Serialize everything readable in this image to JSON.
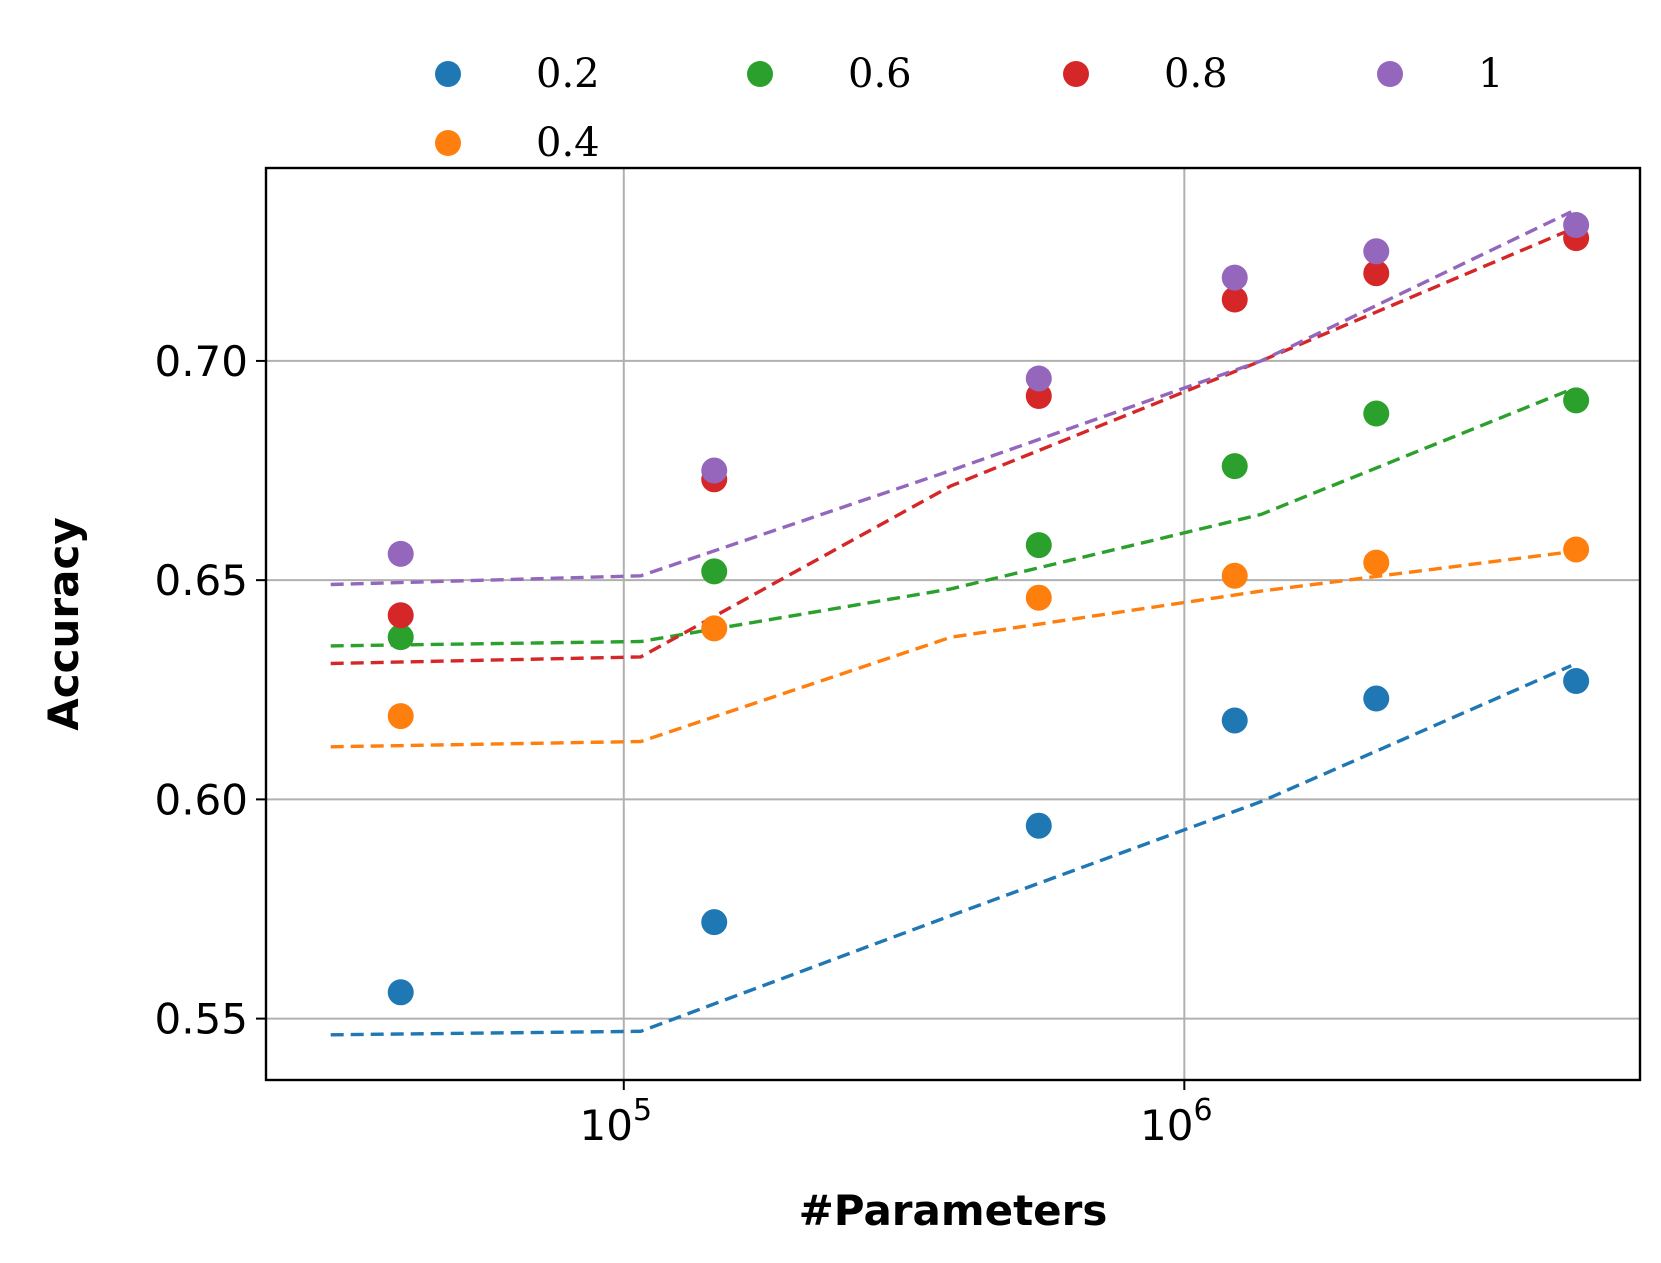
{
  "chart_data": {
    "type": "scatter",
    "title": "",
    "xlabel": "#Parameters",
    "ylabel": "Accuracy",
    "xscale": "log",
    "xlim": [
      23000,
      6500000
    ],
    "ylim": [
      0.536,
      0.744
    ],
    "grid": true,
    "legend_placement": "top, above plot",
    "x_ticks": [
      {
        "value": 100000,
        "base": "10",
        "exp": "5"
      },
      {
        "value": 1000000,
        "base": "10",
        "exp": "6"
      }
    ],
    "y_ticks": [
      {
        "value": 0.55,
        "label": "0.55"
      },
      {
        "value": 0.6,
        "label": "0.60"
      },
      {
        "value": 0.65,
        "label": "0.65"
      },
      {
        "value": 0.7,
        "label": "0.70"
      }
    ],
    "x": [
      40000,
      145000,
      550000,
      1230000,
      2200000,
      5000000
    ],
    "fit_x": [
      30000,
      4900000
    ],
    "series": [
      {
        "name": "0.2",
        "color": "#1f77b4",
        "values": [
          0.556,
          0.572,
          0.594,
          0.618,
          0.623,
          0.627
        ],
        "fit": [
          0.5463,
          0.5471,
          0.5735,
          0.5995,
          0.6305
        ]
      },
      {
        "name": "0.4",
        "color": "#ff7f0e",
        "values": [
          0.619,
          0.639,
          0.646,
          0.651,
          0.654,
          0.657
        ],
        "fit": [
          0.612,
          0.6132,
          0.637,
          0.6475,
          0.6565
        ]
      },
      {
        "name": "0.6",
        "color": "#2ca02c",
        "values": [
          0.637,
          0.652,
          0.658,
          0.676,
          0.688,
          0.691
        ],
        "fit": [
          0.635,
          0.636,
          0.648,
          0.665,
          0.6935
        ]
      },
      {
        "name": "0.8",
        "color": "#d62728",
        "values": [
          0.642,
          0.673,
          0.692,
          0.714,
          0.72,
          0.728
        ],
        "fit": [
          0.631,
          0.6325,
          0.6715,
          0.7,
          0.73
        ]
      },
      {
        "name": "1",
        "color": "#9467bd",
        "values": [
          0.656,
          0.675,
          0.696,
          0.719,
          0.725,
          0.731
        ],
        "fit": [
          0.649,
          0.651,
          0.675,
          0.7,
          0.734
        ]
      }
    ]
  }
}
